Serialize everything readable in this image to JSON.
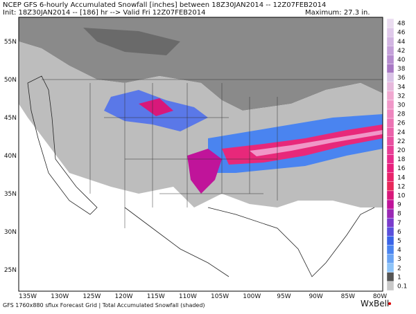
{
  "header": {
    "line1": "NCEP GFS 6-hourly Accumulated Snowfall [inches] between 18Z30JAN2014 -- 12Z07FEB2014",
    "line2": "Init: 18Z30JAN2014 -- [186] hr --> Valid Fri 12Z07FEB2014",
    "maximum": "Maximum:  27.3 in."
  },
  "map": {
    "longitudes": [
      "135W",
      "130W",
      "125W",
      "120W",
      "115W",
      "110W",
      "105W",
      "100W",
      "95W",
      "90W",
      "85W",
      "80W"
    ],
    "latitudes": [
      "55N",
      "50N",
      "45N",
      "40N",
      "35N",
      "30N",
      "25N"
    ]
  },
  "colorbar": [
    {
      "label": "48",
      "color": "#eadcf0"
    },
    {
      "label": "46",
      "color": "#dfc9ea"
    },
    {
      "label": "44",
      "color": "#d2b5e2"
    },
    {
      "label": "42",
      "color": "#c4a0d9"
    },
    {
      "label": "40",
      "color": "#b68ccf"
    },
    {
      "label": "38",
      "color": "#a878c4"
    },
    {
      "label": "36",
      "color": "#d9c2e6"
    },
    {
      "label": "34",
      "color": "#e6b8dc"
    },
    {
      "label": "32",
      "color": "#f0a8d0"
    },
    {
      "label": "30",
      "color": "#f097c8"
    },
    {
      "label": "28",
      "color": "#ee86bf"
    },
    {
      "label": "26",
      "color": "#ec74b4"
    },
    {
      "label": "24",
      "color": "#ea62aa"
    },
    {
      "label": "22",
      "color": "#e850a0"
    },
    {
      "label": "20",
      "color": "#e83e96"
    },
    {
      "label": "18",
      "color": "#e82c8c"
    },
    {
      "label": "16",
      "color": "#e81f7c"
    },
    {
      "label": "14",
      "color": "#e8236a"
    },
    {
      "label": "12",
      "color": "#e8285a"
    },
    {
      "label": "10",
      "color": "#d8187a"
    },
    {
      "label": "9",
      "color": "#c0149a"
    },
    {
      "label": "8",
      "color": "#9a28b4"
    },
    {
      "label": "7",
      "color": "#7a3ccc"
    },
    {
      "label": "6",
      "color": "#5a50dc"
    },
    {
      "label": "5",
      "color": "#3a64e8"
    },
    {
      "label": "4",
      "color": "#4a84f0"
    },
    {
      "label": "3",
      "color": "#6aa4f4"
    },
    {
      "label": "2",
      "color": "#8ec4f8"
    },
    {
      "label": "1",
      "color": "#555555"
    },
    {
      "label": "0.1",
      "color": "#c8c8c8"
    }
  ],
  "footer": {
    "grid": "GFS 1760x880 sflux Forecast Grid | Total Accumulated Snowfall (shaded)",
    "logo": "WxBell"
  }
}
